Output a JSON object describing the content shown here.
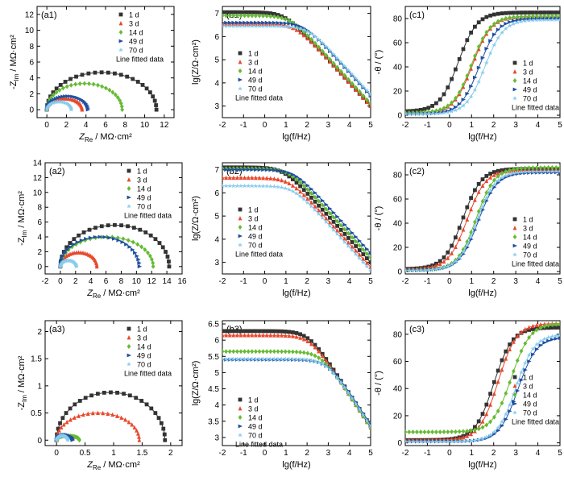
{
  "legend": {
    "entries": [
      "1 d",
      "3 d",
      "14 d",
      "49 d",
      "70 d"
    ],
    "fit_label": "Line fitted data",
    "colors": [
      "#333333",
      "#e8482c",
      "#66bb33",
      "#1f4fa0",
      "#88ccee"
    ],
    "markers": [
      "square",
      "triangle-up",
      "diamond",
      "triangle-right",
      "star"
    ]
  },
  "chart_data": [
    {
      "id": "a1",
      "type": "scatter",
      "panel_label": "(a1)",
      "xlabel_main": "Z",
      "xlabel_sub": "Re",
      "xlabel_unit": " / MΩ·cm²",
      "ylabel_prefix": "-Z",
      "ylabel_sub": "Im",
      "ylabel_unit": " / MΩ·cm²",
      "xlim": [
        -1,
        13
      ],
      "ylim": [
        -1,
        13
      ],
      "xticks": [
        0,
        2,
        4,
        6,
        8,
        10,
        12
      ],
      "yticks": [
        0,
        2,
        4,
        6,
        8,
        10,
        12
      ],
      "series": [
        {
          "name": "1 d",
          "arc_end": 11.2,
          "peak": 4.7
        },
        {
          "name": "3 d",
          "arc_end": 3.6,
          "peak": 1.4
        },
        {
          "name": "14 d",
          "arc_end": 7.7,
          "peak": 3.3
        },
        {
          "name": "49 d",
          "arc_end": 4.2,
          "peak": 1.7
        },
        {
          "name": "70 d",
          "arc_end": 2.5,
          "peak": 1.0
        }
      ]
    },
    {
      "id": "b1",
      "type": "line",
      "panel_label": "(b1)",
      "xlabel": "lg(f/Hz)",
      "ylabel": "lg(Z/Ω·cm²)",
      "xlim": [
        -2,
        5
      ],
      "ylim": [
        2.5,
        7.3
      ],
      "xticks": [
        -2,
        -1,
        0,
        1,
        2,
        3,
        4,
        5
      ],
      "yticks": [
        3,
        4,
        5,
        6,
        7
      ],
      "series": [
        {
          "name": "1 d",
          "low_freq": 7.05,
          "at_5": 3.0
        },
        {
          "name": "3 d",
          "low_freq": 6.55,
          "at_5": 3.0
        },
        {
          "name": "14 d",
          "low_freq": 6.9,
          "at_5": 3.1
        },
        {
          "name": "49 d",
          "low_freq": 6.6,
          "at_5": 3.45
        },
        {
          "name": "70 d",
          "low_freq": 6.45,
          "at_5": 3.5
        }
      ]
    },
    {
      "id": "c1",
      "type": "line",
      "panel_label": "(c1)",
      "xlabel": "lg(f/Hz)",
      "ylabel": "-θ / (°)",
      "xlim": [
        -2,
        5
      ],
      "ylim": [
        -2,
        90
      ],
      "xticks": [
        -2,
        -1,
        0,
        1,
        2,
        3,
        4,
        5
      ],
      "yticks": [
        0,
        20,
        40,
        60,
        80
      ],
      "series": [
        {
          "name": "1 d",
          "min": 3,
          "max": 85,
          "mid": 0.4
        },
        {
          "name": "3 d",
          "min": 2,
          "max": 82,
          "mid": 1.05
        },
        {
          "name": "14 d",
          "min": 2,
          "max": 82,
          "mid": 1.0
        },
        {
          "name": "49 d",
          "min": 1,
          "max": 80,
          "mid": 1.35
        },
        {
          "name": "70 d",
          "min": 1,
          "max": 79,
          "mid": 1.6
        }
      ]
    },
    {
      "id": "a2",
      "type": "scatter",
      "panel_label": "(a2)",
      "xlabel_main": "Z",
      "xlabel_sub": "Re",
      "xlabel_unit": " / MΩ·cm²",
      "ylabel_prefix": "-Z",
      "ylabel_sub": "Im",
      "ylabel_unit": " / MΩ·cm²",
      "xlim": [
        -2,
        16
      ],
      "ylim": [
        -1,
        14
      ],
      "xticks": [
        -2,
        0,
        2,
        4,
        6,
        8,
        10,
        12,
        14,
        16
      ],
      "yticks": [
        0,
        2,
        4,
        6,
        8,
        10,
        12,
        14
      ],
      "series": [
        {
          "name": "1 d",
          "arc_end": 14.3,
          "peak": 5.6
        },
        {
          "name": "3 d",
          "arc_end": 4.8,
          "peak": 1.9
        },
        {
          "name": "14 d",
          "arc_end": 12.2,
          "peak": 4.0
        },
        {
          "name": "49 d",
          "arc_end": 10.4,
          "peak": 4.0
        },
        {
          "name": "70 d",
          "arc_end": 2.1,
          "peak": 0.8
        }
      ]
    },
    {
      "id": "b2",
      "type": "line",
      "panel_label": "(b2)",
      "xlabel": "lg(f/Hz)",
      "ylabel": "lg(Z/Ω·cm²)",
      "xlim": [
        -2,
        5
      ],
      "ylim": [
        2.5,
        7.3
      ],
      "xticks": [
        -2,
        -1,
        0,
        1,
        2,
        3,
        4,
        5
      ],
      "yticks": [
        3,
        4,
        5,
        6,
        7
      ],
      "series": [
        {
          "name": "1 d",
          "low_freq": 7.1,
          "at_5": 3.0
        },
        {
          "name": "3 d",
          "low_freq": 6.65,
          "at_5": 2.8
        },
        {
          "name": "14 d",
          "low_freq": 7.05,
          "at_5": 3.2
        },
        {
          "name": "49 d",
          "low_freq": 7.0,
          "at_5": 3.4
        },
        {
          "name": "70 d",
          "low_freq": 6.3,
          "at_5": 2.65
        }
      ]
    },
    {
      "id": "c2",
      "type": "line",
      "panel_label": "(c2)",
      "xlabel": "lg(f/Hz)",
      "ylabel": "-θ / (°)",
      "xlim": [
        -2,
        5
      ],
      "ylim": [
        -2,
        90
      ],
      "xticks": [
        -2,
        -1,
        0,
        1,
        2,
        3,
        4,
        5
      ],
      "yticks": [
        0,
        20,
        40,
        60,
        80
      ],
      "series": [
        {
          "name": "1 d",
          "min": 2,
          "max": 85,
          "mid": 0.6
        },
        {
          "name": "3 d",
          "min": 2,
          "max": 84,
          "mid": 0.8
        },
        {
          "name": "14 d",
          "min": 1,
          "max": 86,
          "mid": 1.2
        },
        {
          "name": "49 d",
          "min": 1,
          "max": 82,
          "mid": 1.3
        },
        {
          "name": "70 d",
          "min": 1,
          "max": 83,
          "mid": 1.25
        }
      ]
    },
    {
      "id": "a3",
      "type": "scatter",
      "panel_label": "(a3)",
      "xlabel_main": "Z",
      "xlabel_sub": "Re",
      "xlabel_unit": " / MΩ·cm²",
      "ylabel_prefix": "-Z",
      "ylabel_sub": "Im",
      "ylabel_unit": " / MΩ·cm²",
      "xlim": [
        -0.2,
        2.2
      ],
      "ylim": [
        -0.1,
        2.2
      ],
      "xticks": [
        0.0,
        0.5,
        1.0,
        1.5,
        2.0
      ],
      "yticks": [
        0.0,
        0.5,
        1.0,
        1.5,
        2.0
      ],
      "series": [
        {
          "name": "1 d",
          "arc_end": 1.9,
          "peak": 0.88
        },
        {
          "name": "3 d",
          "arc_end": 1.45,
          "peak": 0.5
        },
        {
          "name": "14 d",
          "arc_end": 0.4,
          "peak": 0.08
        },
        {
          "name": "49 d",
          "arc_end": 0.28,
          "peak": 0.1
        },
        {
          "name": "70 d",
          "arc_end": 0.2,
          "peak": 0.08
        }
      ]
    },
    {
      "id": "b3",
      "type": "line",
      "panel_label": "(b3)",
      "xlabel": "lg(f/Hz)",
      "ylabel": "lg(Z/Ω·cm²)",
      "xlim": [
        -2,
        5
      ],
      "ylim": [
        2.75,
        6.6
      ],
      "xticks": [
        -2,
        -1,
        0,
        1,
        2,
        3,
        4,
        5
      ],
      "yticks": [
        3.0,
        3.5,
        4.0,
        4.5,
        5.0,
        5.5,
        6.0,
        6.5
      ],
      "series": [
        {
          "name": "1 d",
          "low_freq": 6.28,
          "at_5": 3.35
        },
        {
          "name": "3 d",
          "low_freq": 6.15,
          "at_5": 3.3
        },
        {
          "name": "14 d",
          "low_freq": 5.65,
          "at_5": 3.3
        },
        {
          "name": "49 d",
          "low_freq": 5.4,
          "at_5": 3.4
        },
        {
          "name": "70 d",
          "low_freq": 5.42,
          "at_5": 3.35
        }
      ]
    },
    {
      "id": "c3",
      "type": "line",
      "panel_label": "(c3)",
      "xlabel": "lg(f/Hz)",
      "ylabel": "-θ / (°)",
      "xlim": [
        -2,
        5
      ],
      "ylim": [
        -2,
        90
      ],
      "xticks": [
        -2,
        -1,
        0,
        1,
        2,
        3,
        4,
        5
      ],
      "yticks": [
        0,
        20,
        40,
        60,
        80
      ],
      "series": [
        {
          "name": "1 d",
          "min": 2,
          "max": 85,
          "mid": 2.0
        },
        {
          "name": "3 d",
          "min": 2,
          "max": 88,
          "mid": 2.2
        },
        {
          "name": "14 d",
          "min": 8,
          "max": 88,
          "mid": 2.8
        },
        {
          "name": "49 d",
          "min": 1,
          "max": 78,
          "mid": 3.1
        },
        {
          "name": "70 d",
          "min": 1,
          "max": 80,
          "mid": 3.0
        }
      ]
    }
  ]
}
